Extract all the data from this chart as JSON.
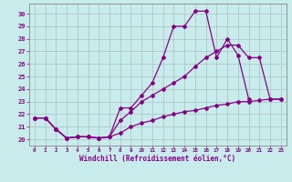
{
  "title": "",
  "xlabel": "Windchill (Refroidissement éolien,°C)",
  "ylabel": "",
  "bg_color": "#c8ecec",
  "line_color": "#880088",
  "grid_color": "#b0c8c8",
  "xlim": [
    -0.5,
    23.5
  ],
  "ylim": [
    19.5,
    30.8
  ],
  "xticks": [
    0,
    1,
    2,
    3,
    4,
    5,
    6,
    7,
    8,
    9,
    10,
    11,
    12,
    13,
    14,
    15,
    16,
    17,
    18,
    19,
    20,
    21,
    22,
    23
  ],
  "yticks": [
    20,
    21,
    22,
    23,
    24,
    25,
    26,
    27,
    28,
    29,
    30
  ],
  "line1_x": [
    0,
    1,
    2,
    3,
    4,
    5,
    6,
    7,
    8,
    9,
    10,
    11,
    12,
    13,
    14,
    15,
    16,
    17,
    18,
    19,
    20,
    21,
    22,
    23
  ],
  "line1_y": [
    21.7,
    21.7,
    20.8,
    20.1,
    20.2,
    20.2,
    20.1,
    20.2,
    22.5,
    22.5,
    23.5,
    24.5,
    26.5,
    29.0,
    29.0,
    30.2,
    30.2,
    26.5,
    28.0,
    26.7,
    23.2,
    null,
    null,
    null
  ],
  "line2_x": [
    0,
    1,
    2,
    3,
    4,
    5,
    6,
    7,
    8,
    9,
    10,
    11,
    12,
    13,
    14,
    15,
    16,
    17,
    18,
    19,
    20,
    21,
    22,
    23
  ],
  "line2_y": [
    21.7,
    21.7,
    20.8,
    20.1,
    20.2,
    20.2,
    20.1,
    20.2,
    21.5,
    22.2,
    23.0,
    23.5,
    24.0,
    24.5,
    25.0,
    25.8,
    26.5,
    27.0,
    27.5,
    27.5,
    26.5,
    26.5,
    23.2,
    23.2
  ],
  "line3_x": [
    0,
    1,
    2,
    3,
    4,
    5,
    6,
    7,
    8,
    9,
    10,
    11,
    12,
    13,
    14,
    15,
    16,
    17,
    18,
    19,
    20,
    21,
    22,
    23
  ],
  "line3_y": [
    21.7,
    21.7,
    20.8,
    20.1,
    20.2,
    20.2,
    20.1,
    20.2,
    20.5,
    21.0,
    21.3,
    21.5,
    21.8,
    22.0,
    22.2,
    22.3,
    22.5,
    22.7,
    22.8,
    23.0,
    23.0,
    23.1,
    23.2,
    23.2
  ]
}
